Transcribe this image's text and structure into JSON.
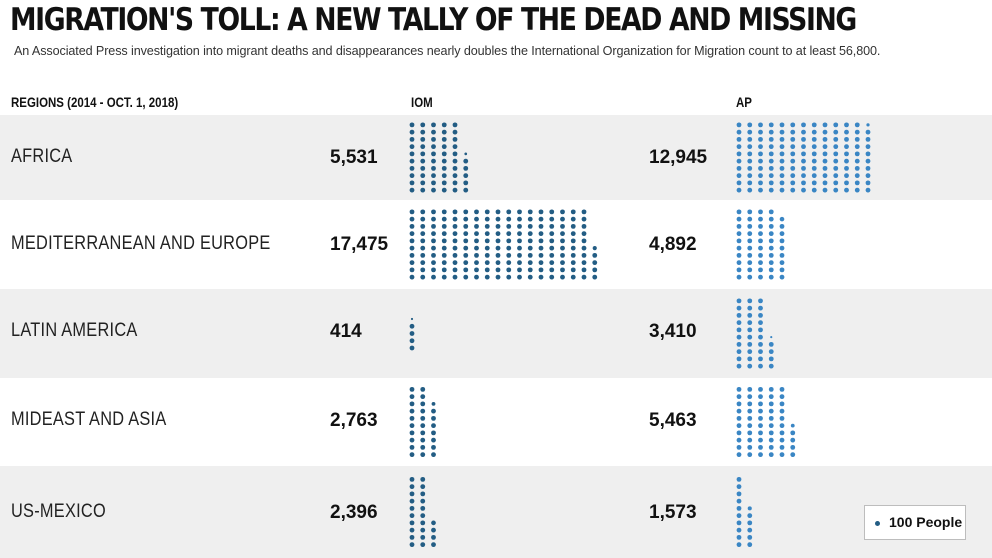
{
  "header": {
    "title": "MIGRATION'S TOLL: A NEW TALLY OF THE DEAD AND MISSING",
    "subtitle": "An Associated Press investigation into migrant deaths and disappearances nearly doubles the International Organization for Migration count to at least 56,800."
  },
  "chart_data": {
    "type": "table",
    "title": "MIGRATION'S TOLL: A NEW TALLY OF THE DEAD AND MISSING",
    "columns": [
      "REGIONS (2014 - OCT. 1, 2018)",
      "IOM",
      "AP"
    ],
    "unit_per_dot": 100,
    "legend": {
      "label": "100 People",
      "placement": "bottom-right"
    },
    "series": [
      {
        "name": "IOM",
        "color": "#235d84"
      },
      {
        "name": "AP",
        "color": "#3a86c4"
      }
    ],
    "rows": [
      {
        "region": "AFRICA",
        "iom": 5531,
        "iom_label": "5,531",
        "ap": 12945,
        "ap_label": "12,945"
      },
      {
        "region": "MEDITERRANEAN AND EUROPE",
        "iom": 17475,
        "iom_label": "17,475",
        "ap": 4892,
        "ap_label": "4,892"
      },
      {
        "region": "LATIN AMERICA",
        "iom": 414,
        "iom_label": "414",
        "ap": 3410,
        "ap_label": "3,410"
      },
      {
        "region": "MIDEAST AND ASIA",
        "iom": 2763,
        "iom_label": "2,763",
        "ap": 5463,
        "ap_label": "5,463"
      },
      {
        "region": "US-MEXICO",
        "iom": 2396,
        "iom_label": "2,396",
        "ap": 1573,
        "ap_label": "1,573"
      }
    ]
  },
  "colors": {
    "row_alt": "#efefef",
    "iom_dot": "#235d84",
    "ap_dot": "#3a86c4"
  }
}
